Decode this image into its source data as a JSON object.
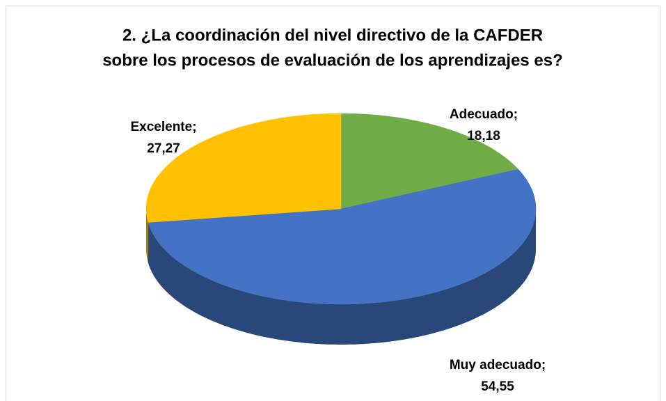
{
  "chart_data": {
    "type": "pie",
    "title": [
      "2. ¿La coordinación del nivel directivo de la CAFDER",
      "sobre los procesos de evaluación de los aprendizajes es?"
    ],
    "categories": [
      "Adecuado",
      "Muy adecuado",
      "Excelente"
    ],
    "values": [
      18.18,
      54.55,
      27.27
    ],
    "value_labels": [
      "18,18",
      "54,55",
      "27,27"
    ],
    "label_separator": ";",
    "colors": [
      "#70ad47",
      "#4472c4",
      "#ffc000"
    ]
  }
}
